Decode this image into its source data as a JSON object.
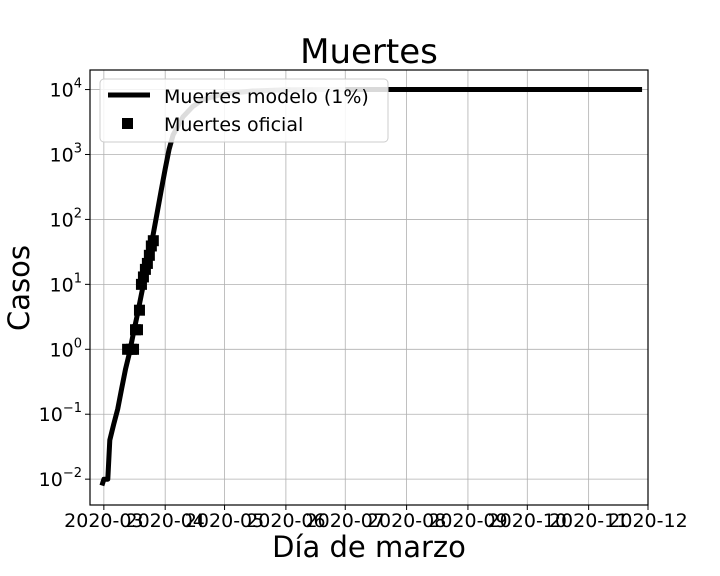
{
  "chart_data": {
    "type": "line",
    "title": "Muertes",
    "xlabel": "Día de marzo",
    "ylabel": "Casos",
    "yscale": "log",
    "grid": true,
    "legend_position": "top-left",
    "x_ticks": [
      "2020-03",
      "2020-04",
      "2020-05",
      "2020-06",
      "2020-07",
      "2020-08",
      "2020-09",
      "2020-10",
      "2020-11",
      "2020-12"
    ],
    "xlim": [
      "2020-02-23",
      "2020-12-01"
    ],
    "ylim": [
      0.004,
      20000
    ],
    "y_ticks": [
      {
        "value": 0.01,
        "base": "10",
        "exp": "−2"
      },
      {
        "value": 0.1,
        "base": "10",
        "exp": "−1"
      },
      {
        "value": 1,
        "base": "10",
        "exp": "0"
      },
      {
        "value": 10,
        "base": "10",
        "exp": "1"
      },
      {
        "value": 100,
        "base": "10",
        "exp": "2"
      },
      {
        "value": 1000,
        "base": "10",
        "exp": "3"
      },
      {
        "value": 10000,
        "base": "10",
        "exp": "4"
      }
    ],
    "series": [
      {
        "name": "Muertes modelo (1%)",
        "style": "line",
        "color": "#000000",
        "fade_color": "#d8d8d8",
        "x": [
          "2020-02-29",
          "2020-03-01",
          "2020-03-03",
          "2020-03-04",
          "2020-03-06",
          "2020-03-08",
          "2020-03-10",
          "2020-03-12",
          "2020-03-14",
          "2020-03-16",
          "2020-03-18",
          "2020-03-20",
          "2020-03-22",
          "2020-03-24",
          "2020-03-26",
          "2020-03-28",
          "2020-03-30",
          "2020-04-01",
          "2020-04-03",
          "2020-04-05",
          "2020-04-10",
          "2020-04-15",
          "2020-04-20",
          "2020-04-30",
          "2020-05-15",
          "2020-06-01",
          "2020-07-01",
          "2020-08-01",
          "2020-09-01",
          "2020-10-01",
          "2020-11-01",
          "2020-11-28"
        ],
        "y": [
          0.008,
          0.01,
          0.01,
          0.04,
          0.07,
          0.12,
          0.25,
          0.5,
          0.9,
          1.8,
          3.5,
          7,
          14,
          30,
          60,
          130,
          280,
          600,
          1200,
          2000,
          3800,
          5500,
          7000,
          8500,
          9500,
          9900,
          10000,
          10000,
          10000,
          10000,
          10000,
          10000
        ],
        "fade_from": "2020-04-01",
        "fade_to": "2020-07-01"
      },
      {
        "name": "Muertes oficial",
        "style": "square",
        "color": "#000000",
        "x": [
          "2020-03-13",
          "2020-03-15",
          "2020-03-16",
          "2020-03-17",
          "2020-03-18",
          "2020-03-19",
          "2020-03-20",
          "2020-03-21",
          "2020-03-22",
          "2020-03-23",
          "2020-03-24",
          "2020-03-25",
          "2020-03-26"
        ],
        "y": [
          1,
          1,
          1,
          2,
          2,
          4,
          10,
          13,
          17,
          21,
          28,
          39,
          47
        ]
      }
    ]
  }
}
